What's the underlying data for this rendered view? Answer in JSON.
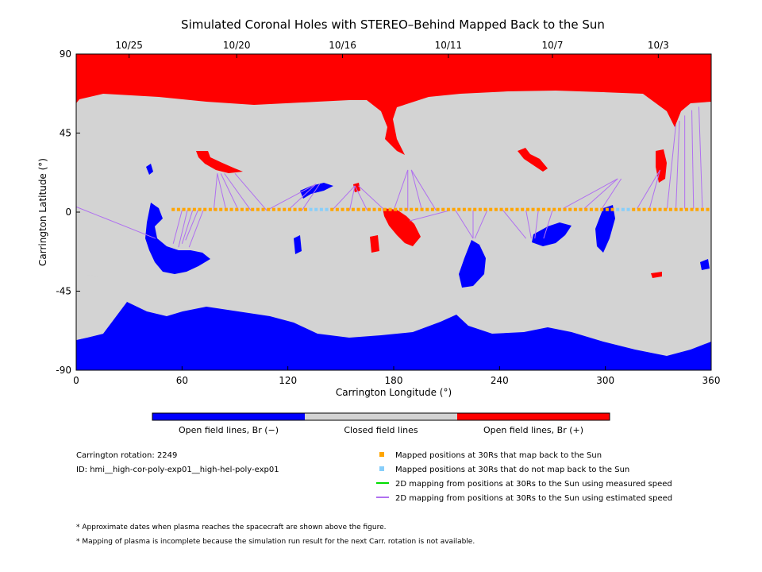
{
  "chart_data": {
    "type": "scatter",
    "title": "Simulated Coronal Holes with STEREO–Behind Mapped Back to the Sun",
    "xlabel": "Carrington Longitude (°)",
    "ylabel": "Carrington Latitude (°)",
    "xlim": [
      0,
      360
    ],
    "ylim": [
      -90,
      90
    ],
    "xticks": [
      0,
      60,
      120,
      180,
      240,
      300,
      360
    ],
    "yticks": [
      -90,
      -45,
      0,
      45,
      90
    ],
    "top_dates": [
      {
        "label": "10/25",
        "lon": 30
      },
      {
        "label": "10/20",
        "lon": 91
      },
      {
        "label": "10/16",
        "lon": 151
      },
      {
        "label": "10/11",
        "lon": 211
      },
      {
        "label": "10/7",
        "lon": 270
      },
      {
        "label": "10/3",
        "lon": 330
      }
    ],
    "mapped_positions_lat": 1.5,
    "mapped_positions_lon_range": [
      55,
      360
    ],
    "not_mapped_positions_lon": [
      133,
      136,
      139,
      142,
      307,
      310,
      313
    ],
    "estimated_speed_lines": [
      {
        "from": [
          0,
          3
        ],
        "to": [
          45,
          -15
        ]
      },
      {
        "from": [
          60,
          1
        ],
        "to": [
          55,
          -18
        ]
      },
      {
        "from": [
          63,
          1
        ],
        "to": [
          58,
          -20
        ]
      },
      {
        "from": [
          66,
          1
        ],
        "to": [
          60,
          -18
        ]
      },
      {
        "from": [
          69,
          1
        ],
        "to": [
          62,
          -16
        ]
      },
      {
        "from": [
          72,
          1
        ],
        "to": [
          64,
          -20
        ]
      },
      {
        "from": [
          78,
          1
        ],
        "to": [
          80,
          22
        ]
      },
      {
        "from": [
          85,
          1
        ],
        "to": [
          80,
          22
        ]
      },
      {
        "from": [
          92,
          1
        ],
        "to": [
          82,
          22
        ]
      },
      {
        "from": [
          99,
          1
        ],
        "to": [
          84,
          22
        ]
      },
      {
        "from": [
          108,
          1
        ],
        "to": [
          90,
          22
        ]
      },
      {
        "from": [
          108,
          1
        ],
        "to": [
          136,
          16
        ]
      },
      {
        "from": [
          120,
          1
        ],
        "to": [
          136,
          16
        ]
      },
      {
        "from": [
          128,
          1
        ],
        "to": [
          138,
          16
        ]
      },
      {
        "from": [
          145,
          1
        ],
        "to": [
          158,
          15
        ]
      },
      {
        "from": [
          155,
          1
        ],
        "to": [
          158,
          15
        ]
      },
      {
        "from": [
          165,
          1
        ],
        "to": [
          158,
          15
        ]
      },
      {
        "from": [
          175,
          1
        ],
        "to": [
          160,
          15
        ]
      },
      {
        "from": [
          180,
          1
        ],
        "to": [
          188,
          24
        ]
      },
      {
        "from": [
          188,
          1
        ],
        "to": [
          188,
          24
        ]
      },
      {
        "from": [
          196,
          1
        ],
        "to": [
          190,
          24
        ]
      },
      {
        "from": [
          204,
          1
        ],
        "to": [
          190,
          24
        ]
      },
      {
        "from": [
          212,
          1
        ],
        "to": [
          189,
          -5
        ]
      },
      {
        "from": [
          215,
          1
        ],
        "to": [
          225,
          -15
        ]
      },
      {
        "from": [
          225,
          1
        ],
        "to": [
          225,
          -15
        ]
      },
      {
        "from": [
          233,
          1
        ],
        "to": [
          226,
          -15
        ]
      },
      {
        "from": [
          242,
          1
        ],
        "to": [
          255,
          -15
        ]
      },
      {
        "from": [
          255,
          1
        ],
        "to": [
          258,
          -15
        ]
      },
      {
        "from": [
          262,
          1
        ],
        "to": [
          260,
          -15
        ]
      },
      {
        "from": [
          270,
          1
        ],
        "to": [
          265,
          -15
        ]
      },
      {
        "from": [
          276,
          2
        ],
        "to": [
          307,
          19
        ]
      },
      {
        "from": [
          288,
          2
        ],
        "to": [
          307,
          19
        ]
      },
      {
        "from": [
          298,
          2
        ],
        "to": [
          309,
          19
        ]
      },
      {
        "from": [
          318,
          2
        ],
        "to": [
          331,
          24
        ]
      },
      {
        "from": [
          325,
          2
        ],
        "to": [
          331,
          24
        ]
      },
      {
        "from": [
          335,
          2
        ],
        "to": [
          340,
          50
        ]
      },
      {
        "from": [
          340,
          2
        ],
        "to": [
          342,
          52
        ]
      },
      {
        "from": [
          345,
          2
        ],
        "to": [
          345,
          55
        ]
      },
      {
        "from": [
          350,
          2
        ],
        "to": [
          349,
          58
        ]
      },
      {
        "from": [
          355,
          2
        ],
        "to": [
          353,
          60
        ]
      }
    ],
    "colorbar": [
      {
        "label": "Open field lines, Br (−)",
        "color": "#0000ff"
      },
      {
        "label": "Closed field lines",
        "color": "#d3d3d3"
      },
      {
        "label": "Open field lines, Br (+)",
        "color": "#ff0000"
      }
    ],
    "legend": [
      {
        "label": "Mapped positions at 30Rs that map back to the Sun",
        "color": "#ffa500",
        "kind": "square"
      },
      {
        "label": "Mapped positions at 30Rs that do not map back to the Sun",
        "color": "#87cefa",
        "kind": "square"
      },
      {
        "label": "2D mapping from positions at 30Rs to the Sun using measured speed",
        "color": "#00dd00",
        "kind": "line"
      },
      {
        "label": "2D mapping from positions at 30Rs to the Sun using estimated speed",
        "color": "#b070f0",
        "kind": "line"
      }
    ],
    "info": {
      "rotation": "Carrington rotation: 2249",
      "id": "ID: hmi__high-cor-poly-exp01__high-hel-poly-exp01"
    },
    "notes": [
      "* Approximate dates when plasma reaches the spacecraft are shown above the figure.",
      "* Mapping of plasma is incomplete because the simulation run result for the next Carr. rotation is not available."
    ]
  },
  "colors": {
    "negative": "#0000ff",
    "closed": "#d3d3d3",
    "positive": "#ff0000",
    "mapped": "#ffa500",
    "unmapped": "#87cefa",
    "estimated": "#b070f0"
  }
}
